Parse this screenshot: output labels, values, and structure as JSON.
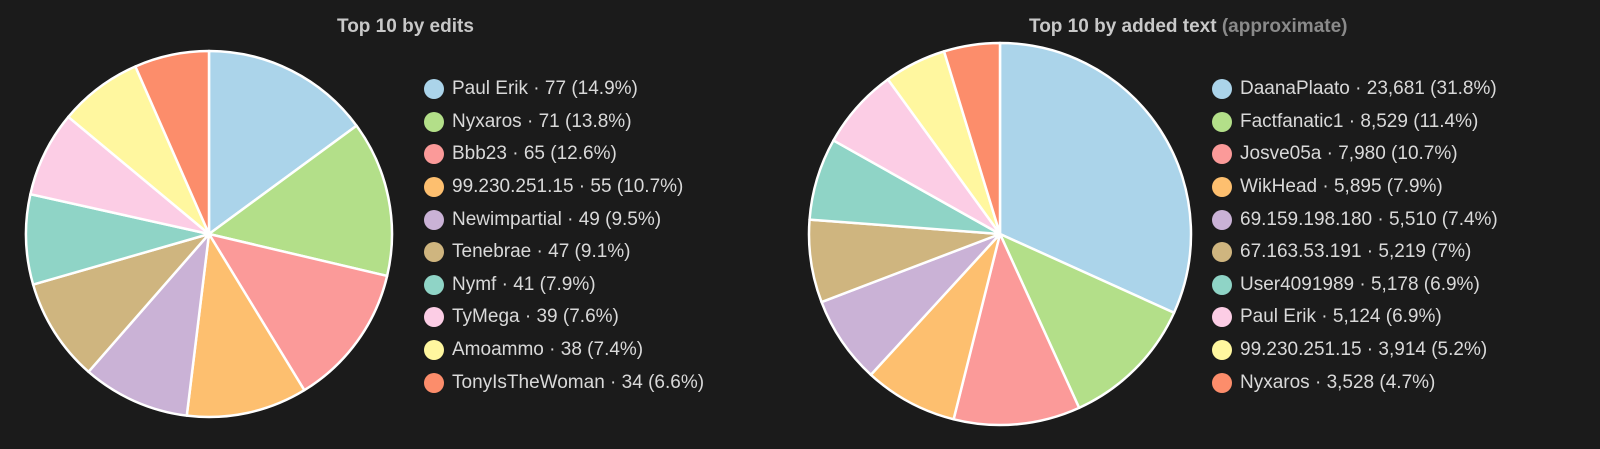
{
  "chart_data": [
    {
      "type": "pie",
      "title": "Top 10 by edits",
      "title_note": "",
      "legend_position": "right",
      "slices": [
        {
          "label": "Paul Erik",
          "value": 77,
          "value_text": "77",
          "percent_text": "14.9%",
          "color": "#abd4ea"
        },
        {
          "label": "Nyxaros",
          "value": 71,
          "value_text": "71",
          "percent_text": "13.8%",
          "color": "#b3df89"
        },
        {
          "label": "Bbb23",
          "value": 65,
          "value_text": "65",
          "percent_text": "12.6%",
          "color": "#fb9a99"
        },
        {
          "label": "99.230.251.15",
          "value": 55,
          "value_text": "55",
          "percent_text": "10.7%",
          "color": "#fdbf6f"
        },
        {
          "label": "Newimpartial",
          "value": 49,
          "value_text": "49",
          "percent_text": "9.5%",
          "color": "#cab2d6"
        },
        {
          "label": "Tenebrae",
          "value": 47,
          "value_text": "47",
          "percent_text": "9.1%",
          "color": "#cfb57f"
        },
        {
          "label": "Nymf",
          "value": 41,
          "value_text": "41",
          "percent_text": "7.9%",
          "color": "#8fd4c6"
        },
        {
          "label": "TyMega",
          "value": 39,
          "value_text": "39",
          "percent_text": "7.6%",
          "color": "#fccde5"
        },
        {
          "label": "Amoammo",
          "value": 38,
          "value_text": "38",
          "percent_text": "7.4%",
          "color": "#fff79f"
        },
        {
          "label": "TonyIsTheWoman",
          "value": 34,
          "value_text": "34",
          "percent_text": "6.6%",
          "color": "#fc8d6b"
        }
      ]
    },
    {
      "type": "pie",
      "title": "Top 10 by added text",
      "title_note": "(approximate)",
      "legend_position": "right",
      "slices": [
        {
          "label": "DaanaPlaato",
          "value": 23681,
          "value_text": "23,681",
          "percent_text": "31.8%",
          "color": "#abd4ea"
        },
        {
          "label": "Factfanatic1",
          "value": 8529,
          "value_text": "8,529",
          "percent_text": "11.4%",
          "color": "#b3df89"
        },
        {
          "label": "Josve05a",
          "value": 7980,
          "value_text": "7,980",
          "percent_text": "10.7%",
          "color": "#fb9a99"
        },
        {
          "label": "WikHead",
          "value": 5895,
          "value_text": "5,895",
          "percent_text": "7.9%",
          "color": "#fdbf6f"
        },
        {
          "label": "69.159.198.180",
          "value": 5510,
          "value_text": "5,510",
          "percent_text": "7.4%",
          "color": "#cab2d6"
        },
        {
          "label": "67.163.53.191",
          "value": 5219,
          "value_text": "5,219",
          "percent_text": "7%",
          "color": "#cfb57f"
        },
        {
          "label": "User4091989",
          "value": 5178,
          "value_text": "5,178",
          "percent_text": "6.9%",
          "color": "#8fd4c6"
        },
        {
          "label": "Paul Erik",
          "value": 5124,
          "value_text": "5,124",
          "percent_text": "6.9%",
          "color": "#fccde5"
        },
        {
          "label": "99.230.251.15",
          "value": 3914,
          "value_text": "3,914",
          "percent_text": "5.2%",
          "color": "#fff79f"
        },
        {
          "label": "Nyxaros",
          "value": 3528,
          "value_text": "3,528",
          "percent_text": "4.7%",
          "color": "#fc8d6b"
        }
      ]
    }
  ]
}
